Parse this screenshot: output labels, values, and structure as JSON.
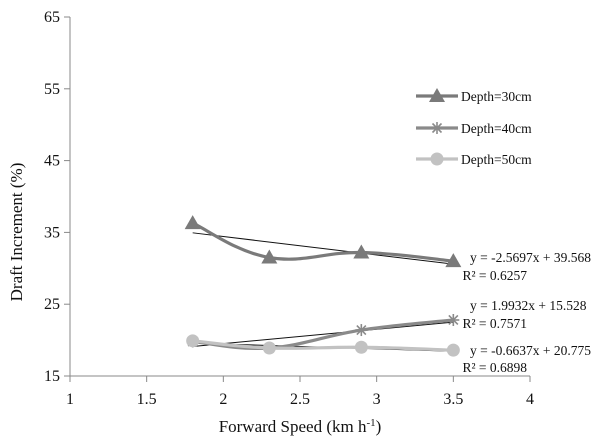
{
  "chart_data": {
    "type": "line",
    "xlabel_main": "Forward Speed (km h",
    "xlabel_sup": "-1",
    "xlabel_end": ")",
    "ylabel": "Draft Increment  (%)",
    "xlim": [
      1,
      4
    ],
    "ylim": [
      15,
      65
    ],
    "xticks": [
      "1",
      "1.5",
      "2",
      "2.5",
      "3",
      "3.5",
      "4"
    ],
    "yticks": [
      "15",
      "25",
      "35",
      "45",
      "55",
      "65"
    ],
    "grid": false,
    "legend_position": "right",
    "series": [
      {
        "name": "Depth=30cm",
        "marker": "triangle",
        "color": "#7a7a7a",
        "x": [
          1.8,
          2.3,
          2.9,
          3.5
        ],
        "y": [
          36.3,
          31.5,
          32.2,
          31.0
        ],
        "trend": {
          "slope": -2.5697,
          "intercept": 39.568,
          "equation": "y = -2.5697x + 39.568",
          "r2": "R² = 0.6257"
        }
      },
      {
        "name": "Depth=40cm",
        "marker": "star",
        "color": "#8a8a8a",
        "x": [
          1.8,
          2.3,
          2.9,
          3.5
        ],
        "y": [
          19.8,
          18.9,
          21.4,
          22.8
        ],
        "trend": {
          "slope": 1.9932,
          "intercept": 15.528,
          "equation": "y = 1.9932x + 15.528",
          "r2": "R² = 0.7571"
        }
      },
      {
        "name": "Depth=50cm",
        "marker": "circle",
        "color": "#c2c2c2",
        "x": [
          1.8,
          2.3,
          2.9,
          3.5
        ],
        "y": [
          19.9,
          18.9,
          19.0,
          18.6
        ],
        "trend": {
          "slope": -0.6637,
          "intercept": 20.775,
          "equation": "y = -0.6637x + 20.775",
          "r2": "R² = 0.6898"
        }
      }
    ]
  }
}
